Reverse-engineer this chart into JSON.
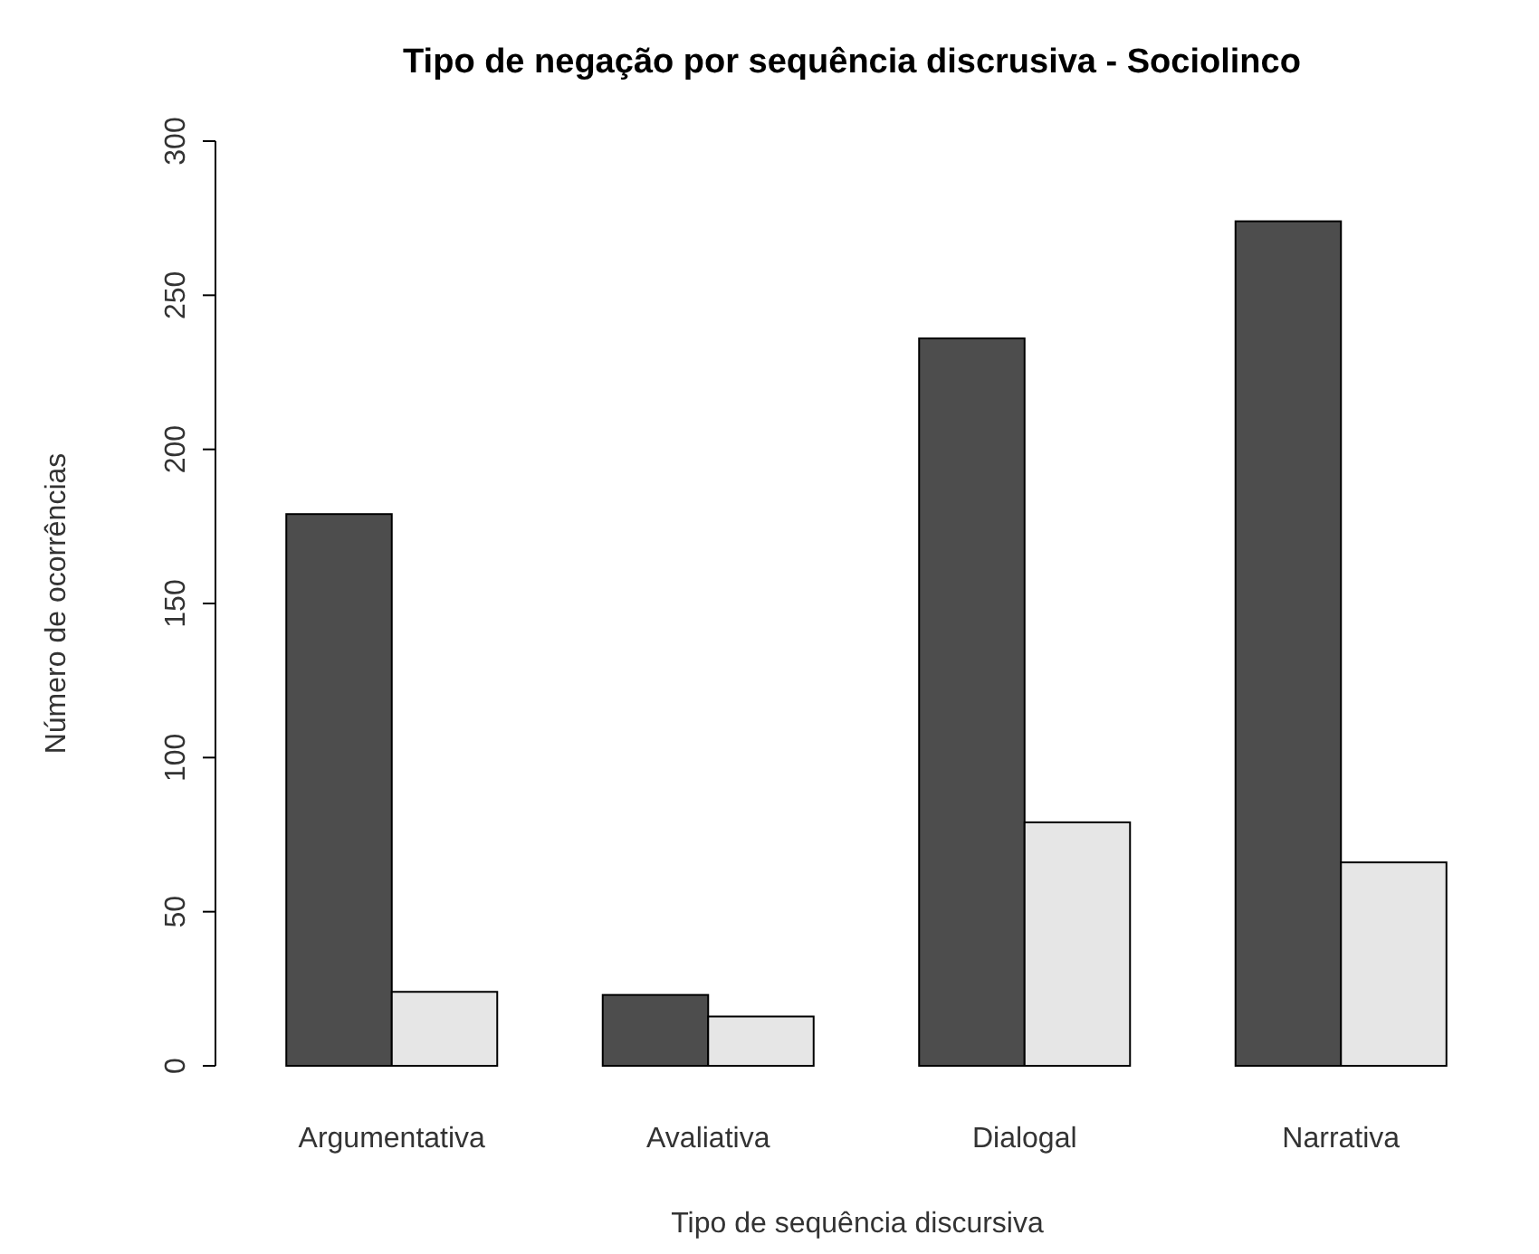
{
  "chart_data": {
    "type": "bar",
    "title": "Tipo de negação por sequência discrusiva - Sociolinco",
    "xlabel": "Tipo de sequência discursiva",
    "ylabel": "Número de ocorrências",
    "categories": [
      "Argumentativa",
      "Avaliativa",
      "Dialogal",
      "Narrativa"
    ],
    "series": [
      {
        "color": "#4d4d4d",
        "values": [
          179,
          23,
          236,
          274
        ]
      },
      {
        "color": "#e6e6e6",
        "values": [
          24,
          16,
          79,
          66
        ]
      }
    ],
    "ylim": [
      0,
      300
    ],
    "yticks": [
      0,
      50,
      100,
      150,
      200,
      250,
      300
    ],
    "grid": false
  }
}
